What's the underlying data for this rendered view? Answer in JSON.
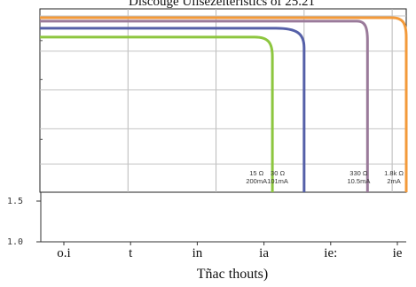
{
  "chart_data": {
    "type": "line",
    "title": "Discouge Ulisezeiteristics of 25.21",
    "xlabel": "Tñac thouts)",
    "ylabel": "",
    "x_tick_labels": [
      "o.i",
      "t",
      "in",
      "ia",
      "ie:",
      "ie"
    ],
    "y_tick_labels": [
      "1.0",
      "1.5"
    ],
    "grid": true,
    "legend": "none",
    "series": [
      {
        "name": "",
        "color": "#8dc63f",
        "x": [
          0,
          61
        ],
        "y": [
          1.84,
          1.84
        ],
        "drop": [
          61,
          66
        ]
      },
      {
        "name": "",
        "color": "#5560a8",
        "x": [
          0,
          67
        ],
        "y": [
          1.865,
          1.865
        ],
        "drop": [
          67,
          75
        ]
      },
      {
        "name": "",
        "color": "#9a7a9a",
        "x": [
          0,
          90
        ],
        "y": [
          1.885,
          1.885
        ],
        "drop": [
          90,
          93
        ]
      },
      {
        "name": "",
        "color": "#f39a3a",
        "x": [
          0,
          100
        ],
        "y": [
          1.895,
          1.895
        ],
        "drop": [
          100,
          104
        ]
      }
    ],
    "annotations": [
      {
        "text": "15 Ω",
        "sub": "200mA",
        "x": 61
      },
      {
        "text": "30 Ω",
        "sub": "101mA",
        "x": 67
      },
      {
        "text": "330 Ω",
        "sub": "10.5mA",
        "x": 90
      },
      {
        "text": "1.8k Ω",
        "sub": "2mA",
        "x": 100
      }
    ]
  }
}
